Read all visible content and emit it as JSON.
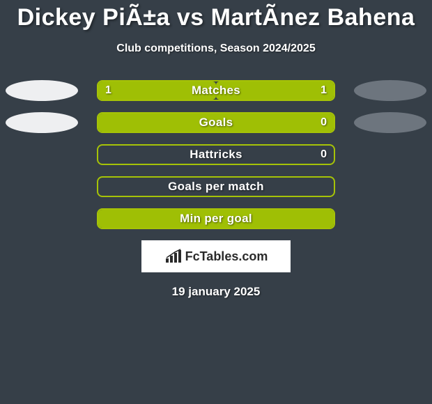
{
  "title": "Dickey PiÃ±a vs MartÃ­nez Bahena",
  "subtitle": "Club competitions, Season 2024/2025",
  "date": "19 january 2025",
  "logo_text": "FcTables.com",
  "colors": {
    "background": "#363f48",
    "oval_light": "#eeeff1",
    "oval_dark": "#6d757e",
    "bar_border_green": "#a6c307",
    "bar_fill_green": "#9fbf05",
    "text_white": "#ffffff"
  },
  "stats": [
    {
      "label": "Matches",
      "left_val": "1",
      "right_val": "1",
      "left_pct": 50,
      "right_pct": 50,
      "show_left_oval": true,
      "show_right_oval": true,
      "left_oval_color": "#eeeff1",
      "right_oval_color": "#6d757e"
    },
    {
      "label": "Goals",
      "left_val": "",
      "right_val": "0",
      "left_pct": 100,
      "right_pct": 0,
      "show_left_oval": true,
      "show_right_oval": true,
      "left_oval_color": "#eeeff1",
      "right_oval_color": "#6d757e"
    },
    {
      "label": "Hattricks",
      "left_val": "",
      "right_val": "0",
      "left_pct": 0,
      "right_pct": 0,
      "show_left_oval": false,
      "show_right_oval": false
    },
    {
      "label": "Goals per match",
      "left_val": "",
      "right_val": "",
      "left_pct": 0,
      "right_pct": 0,
      "show_left_oval": false,
      "show_right_oval": false
    },
    {
      "label": "Min per goal",
      "left_val": "",
      "right_val": "",
      "left_pct": 100,
      "right_pct": 0,
      "show_left_oval": false,
      "show_right_oval": false
    }
  ]
}
